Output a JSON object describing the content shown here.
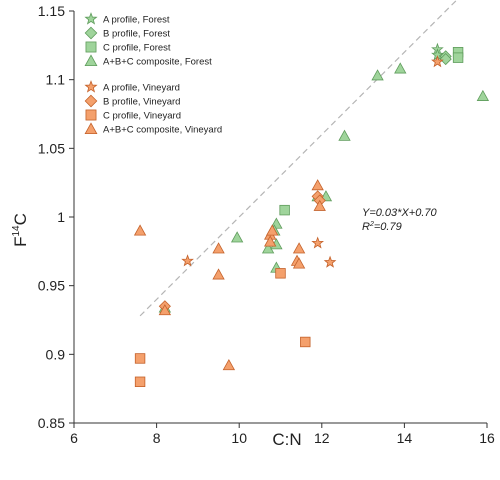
{
  "chart_data": {
    "type": "scatter",
    "xlabel": "C:N",
    "ylabel_main": "F",
    "ylabel_sup": "14",
    "ylabel_tail": "C",
    "xlim": [
      6,
      16
    ],
    "ylim": [
      0.85,
      1.15
    ],
    "xticks": [
      "6",
      "8",
      "10",
      "12",
      "14",
      "16"
    ],
    "yticks": [
      "0.85",
      "0.9",
      "0.95",
      "1",
      "1.05",
      "1.1",
      "1.15"
    ],
    "xtick_values": [
      6,
      8,
      10,
      12,
      14,
      16
    ],
    "ytick_values": [
      0.85,
      0.9,
      0.95,
      1.0,
      1.05,
      1.1,
      1.15
    ],
    "colors": {
      "forest_fill": "#9fd49b",
      "forest_stroke": "#5f9c5c",
      "vineyard_fill": "#f4a06c",
      "vineyard_stroke": "#c4612a",
      "trend": "#b5b5b5"
    },
    "legend_position": "top-left",
    "trendline": {
      "slope": 0.03,
      "intercept": 0.7,
      "x_range": [
        7.6,
        15.9
      ]
    },
    "annotation": {
      "equation": "Y=0.03*X+0.70",
      "r2_prefix": "R",
      "r2_sup": "2",
      "r2_value": "=0.79"
    },
    "series": [
      {
        "name": "A profile, Forest",
        "marker": "star",
        "group": "forest",
        "points": [
          [
            14.8,
            1.122
          ],
          [
            14.8,
            1.118
          ]
        ]
      },
      {
        "name": "B profile, Forest",
        "marker": "diamond",
        "group": "forest",
        "points": [
          [
            15.0,
            1.117
          ],
          [
            15.0,
            1.115
          ]
        ]
      },
      {
        "name": "C profile, Forest",
        "marker": "square",
        "group": "forest",
        "points": [
          [
            15.3,
            1.12
          ],
          [
            15.3,
            1.116
          ],
          [
            11.1,
            1.005
          ]
        ]
      },
      {
        "name": "A+B+C composite, Forest",
        "marker": "triangle",
        "group": "forest",
        "points": [
          [
            15.9,
            1.088
          ],
          [
            13.9,
            1.108
          ],
          [
            13.35,
            1.103
          ],
          [
            12.55,
            1.059
          ],
          [
            12.1,
            1.015
          ],
          [
            11.9,
            1.015
          ],
          [
            10.9,
            0.995
          ],
          [
            10.85,
            0.99
          ],
          [
            10.7,
            0.977
          ],
          [
            10.9,
            0.98
          ],
          [
            9.95,
            0.985
          ],
          [
            10.9,
            0.963
          ],
          [
            8.2,
            0.934
          ]
        ]
      },
      {
        "name": "A profile, Vineyard",
        "marker": "star",
        "group": "vineyard",
        "points": [
          [
            14.8,
            1.113
          ],
          [
            8.75,
            0.968
          ],
          [
            11.9,
            0.981
          ],
          [
            12.2,
            0.967
          ]
        ]
      },
      {
        "name": "B profile, Vineyard",
        "marker": "diamond",
        "group": "vineyard",
        "points": [
          [
            11.9,
            1.015
          ],
          [
            11.95,
            1.012
          ],
          [
            8.2,
            0.935
          ]
        ]
      },
      {
        "name": "C profile, Vineyard",
        "marker": "square",
        "group": "vineyard",
        "points": [
          [
            7.6,
            0.897
          ],
          [
            7.6,
            0.88
          ],
          [
            11.0,
            0.959
          ],
          [
            11.6,
            0.909
          ]
        ]
      },
      {
        "name": "A+B+C composite, Vineyard",
        "marker": "triangle",
        "group": "vineyard",
        "points": [
          [
            7.6,
            0.99
          ],
          [
            9.5,
            0.977
          ],
          [
            9.5,
            0.958
          ],
          [
            10.75,
            0.987
          ],
          [
            10.8,
            0.99
          ],
          [
            10.75,
            0.982
          ],
          [
            11.45,
            0.977
          ],
          [
            11.4,
            0.968
          ],
          [
            11.45,
            0.966
          ],
          [
            11.9,
            1.023
          ],
          [
            11.95,
            1.008
          ],
          [
            9.75,
            0.892
          ],
          [
            8.2,
            0.932
          ]
        ]
      }
    ]
  }
}
